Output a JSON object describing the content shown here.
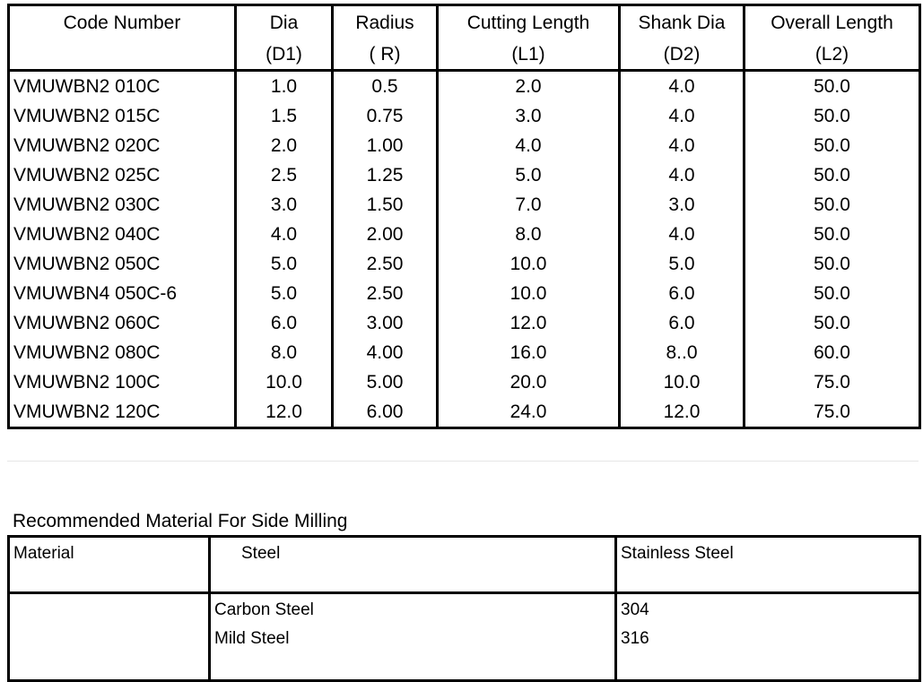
{
  "specs_table": {
    "headers": [
      {
        "line1": "Code Number",
        "line2": ""
      },
      {
        "line1": "Dia",
        "line2": "(D1)"
      },
      {
        "line1": "Radius",
        "line2": "( R)"
      },
      {
        "line1": "Cutting Length",
        "line2": "(L1)"
      },
      {
        "line1": "Shank Dia",
        "line2": "(D2)"
      },
      {
        "line1": "Overall Length",
        "line2": "(L2)"
      }
    ],
    "rows": [
      {
        "code": "VMUWBN2 010C",
        "dia": "1.0",
        "radius": "0.5",
        "cutting_length": "2.0",
        "shank_dia": "4.0",
        "overall_length": "50.0"
      },
      {
        "code": "VMUWBN2 015C",
        "dia": "1.5",
        "radius": "0.75",
        "cutting_length": "3.0",
        "shank_dia": "4.0",
        "overall_length": "50.0"
      },
      {
        "code": "VMUWBN2 020C",
        "dia": "2.0",
        "radius": "1.00",
        "cutting_length": "4.0",
        "shank_dia": "4.0",
        "overall_length": "50.0"
      },
      {
        "code": "VMUWBN2 025C",
        "dia": "2.5",
        "radius": "1.25",
        "cutting_length": "5.0",
        "shank_dia": "4.0",
        "overall_length": "50.0"
      },
      {
        "code": "VMUWBN2 030C",
        "dia": "3.0",
        "radius": "1.50",
        "cutting_length": "7.0",
        "shank_dia": "3.0",
        "overall_length": "50.0"
      },
      {
        "code": "VMUWBN2 040C",
        "dia": "4.0",
        "radius": "2.00",
        "cutting_length": "8.0",
        "shank_dia": "4.0",
        "overall_length": "50.0"
      },
      {
        "code": "VMUWBN2 050C",
        "dia": "5.0",
        "radius": "2.50",
        "cutting_length": "10.0",
        "shank_dia": "5.0",
        "overall_length": "50.0"
      },
      {
        "code": "VMUWBN4 050C-6",
        "dia": "5.0",
        "radius": "2.50",
        "cutting_length": "10.0",
        "shank_dia": "6.0",
        "overall_length": "50.0"
      },
      {
        "code": "VMUWBN2 060C",
        "dia": "6.0",
        "radius": "3.00",
        "cutting_length": "12.0",
        "shank_dia": "6.0",
        "overall_length": "50.0"
      },
      {
        "code": "VMUWBN2 080C",
        "dia": "8.0",
        "radius": "4.00",
        "cutting_length": "16.0",
        "shank_dia": "8..0",
        "overall_length": "60.0"
      },
      {
        "code": "VMUWBN2 100C",
        "dia": "10.0",
        "radius": "5.00",
        "cutting_length": "20.0",
        "shank_dia": "10.0",
        "overall_length": "75.0"
      },
      {
        "code": "VMUWBN2 120C",
        "dia": "12.0",
        "radius": "6.00",
        "cutting_length": "24.0",
        "shank_dia": "12.0",
        "overall_length": "75.0"
      }
    ]
  },
  "materials": {
    "title": "Recommended Material For Side Milling",
    "header": {
      "col1": "Material",
      "col2": "Steel",
      "col3": "Stainless Steel"
    },
    "steel_items": [
      "Carbon Steel",
      "Mild Steel"
    ],
    "stainless_items": [
      "304",
      "316"
    ]
  }
}
